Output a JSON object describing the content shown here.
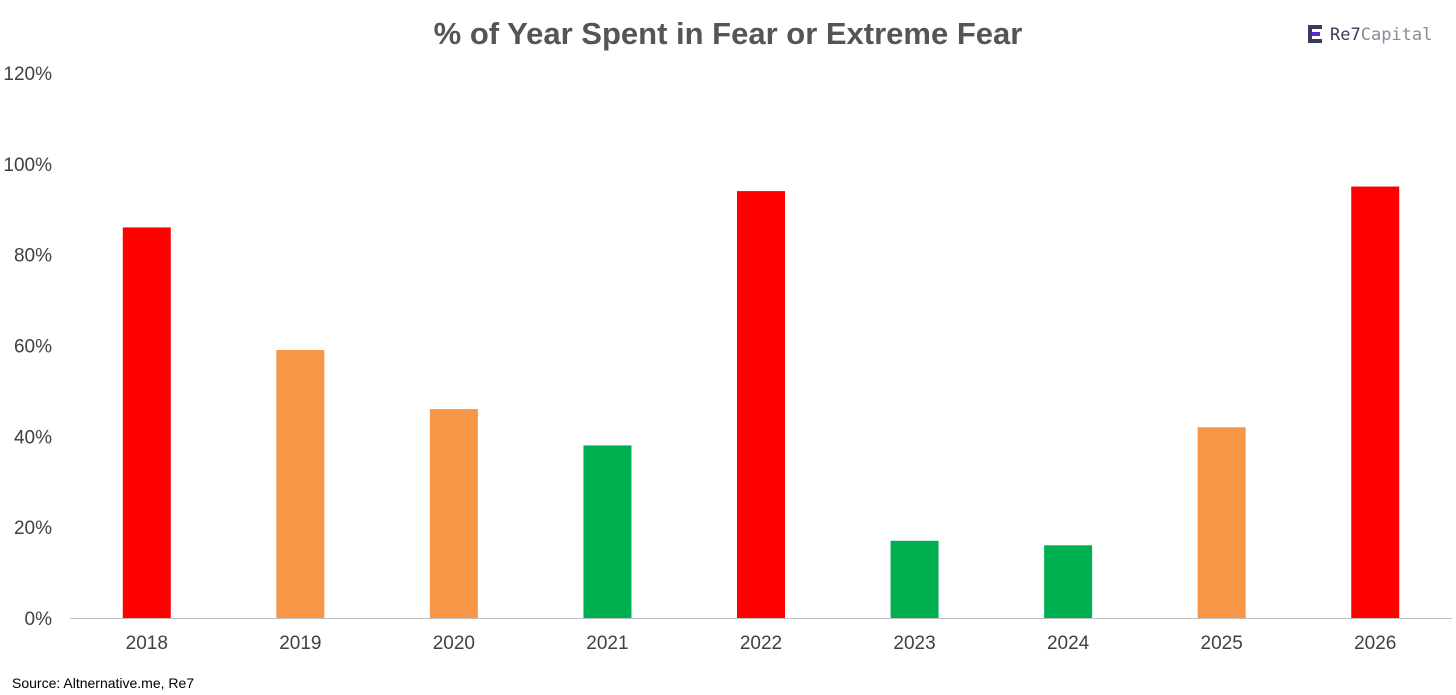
{
  "brand": {
    "name_strong": "Re7",
    "name_light": "Capital",
    "accent": "#5b2bd6"
  },
  "source": "Source: Altnernative.me, Re7",
  "colors": {
    "red": "#ff0000",
    "orange": "#f79646",
    "green": "#00b050"
  },
  "chart_data": {
    "type": "bar",
    "title": "% of Year Spent in Fear or Extreme Fear",
    "xlabel": "",
    "ylabel": "",
    "ylim": [
      0,
      120
    ],
    "yticks": [
      "0%",
      "20%",
      "40%",
      "60%",
      "80%",
      "100%",
      "120%"
    ],
    "categories": [
      "2018",
      "2019",
      "2020",
      "2021",
      "2022",
      "2023",
      "2024",
      "2025",
      "2026"
    ],
    "values": [
      86,
      59,
      46,
      38,
      94,
      17,
      16,
      42,
      95
    ],
    "bar_colors": [
      "#ff0000",
      "#f79646",
      "#f79646",
      "#00b050",
      "#ff0000",
      "#00b050",
      "#00b050",
      "#f79646",
      "#ff0000"
    ],
    "grid": false,
    "legend": "none"
  }
}
